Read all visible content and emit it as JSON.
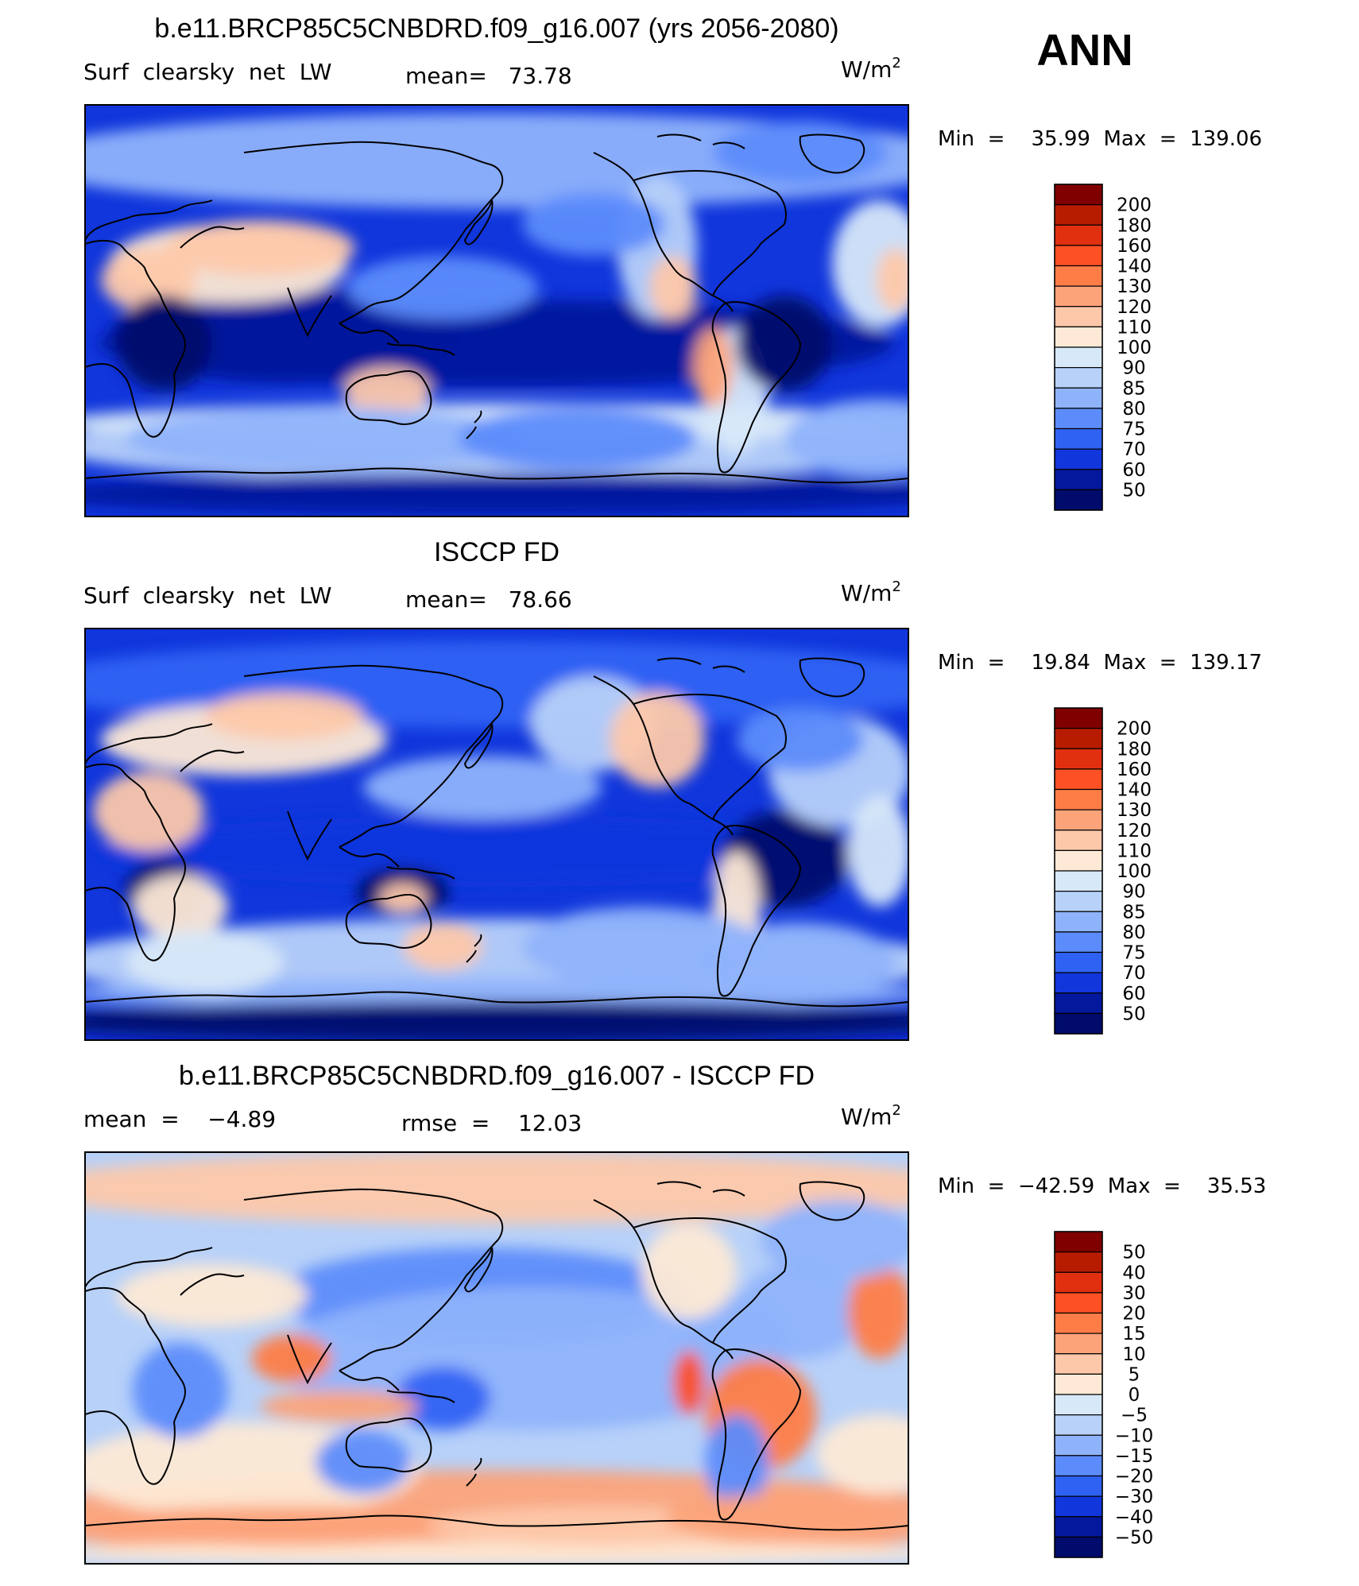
{
  "season": "ANN",
  "units_base": "W/m",
  "units_sup": "2",
  "panels": [
    {
      "title": "b.e11.BRCP85C5CNBDRD.f09_g16.007 (yrs 2056-2080)",
      "left_label": "Surf  clearsky  net  LW",
      "stat_text": "mean=   73.78",
      "minmax_text": "Min  =    35.99  Max  =  139.06",
      "legend_levels": [
        "200",
        "180",
        "160",
        "140",
        "130",
        "120",
        "110",
        "100",
        "90",
        "85",
        "80",
        "75",
        "70",
        "60",
        "50"
      ],
      "colors": [
        "#800000",
        "#b71c00",
        "#e03010",
        "#fd5024",
        "#fe7d47",
        "#fca37a",
        "#fdc8aa",
        "#fde9d5",
        "#d7e8f9",
        "#b7d1f9",
        "#8fb3fb",
        "#5c8cfb",
        "#2f62f3",
        "#1036dc",
        "#03189c",
        "#000b6b"
      ]
    },
    {
      "title": "ISCCP FD",
      "left_label": "Surf  clearsky  net  LW",
      "stat_text": "mean=   78.66",
      "minmax_text": "Min  =    19.84  Max  =  139.17",
      "legend_levels": [
        "200",
        "180",
        "160",
        "140",
        "130",
        "120",
        "110",
        "100",
        "90",
        "85",
        "80",
        "75",
        "70",
        "60",
        "50"
      ],
      "colors": [
        "#800000",
        "#b71c00",
        "#e03010",
        "#fd5024",
        "#fe7d47",
        "#fca37a",
        "#fdc8aa",
        "#fde9d5",
        "#d7e8f9",
        "#b7d1f9",
        "#8fb3fb",
        "#5c8cfb",
        "#2f62f3",
        "#1036dc",
        "#03189c",
        "#000b6b"
      ]
    },
    {
      "title": "b.e11.BRCP85C5CNBDRD.f09_g16.007 - ISCCP FD",
      "left_label": "mean  =    −4.89",
      "stat_text": "rmse  =    12.03",
      "minmax_text": "Min  =  −42.59  Max  =    35.53",
      "legend_levels": [
        "50",
        "40",
        "30",
        "20",
        "15",
        "10",
        "5",
        "0",
        "−5",
        "−10",
        "−15",
        "−20",
        "−30",
        "−40",
        "−50"
      ],
      "colors": [
        "#800000",
        "#b71c00",
        "#e03010",
        "#fd5024",
        "#fe7d47",
        "#fca37a",
        "#fdc8aa",
        "#fde9d5",
        "#d7e8f9",
        "#b7d1f9",
        "#8fb3fb",
        "#5c8cfb",
        "#2f62f3",
        "#1036dc",
        "#03189c",
        "#000b6b"
      ]
    }
  ]
}
